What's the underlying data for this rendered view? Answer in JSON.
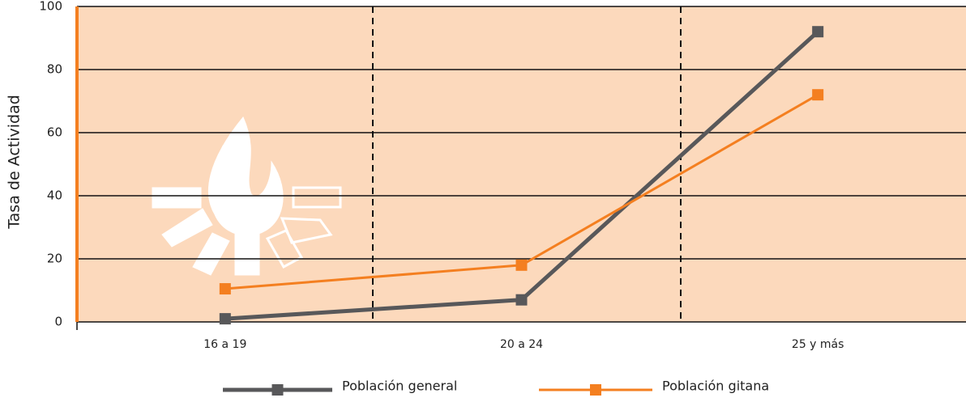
{
  "chart_data": {
    "type": "line",
    "y_label": "Tasa de Actividad",
    "categories": [
      "16 a 19",
      "20 a 24",
      "25 y más"
    ],
    "series": [
      {
        "name": "Población general",
        "color": "#58585a",
        "values": [
          1,
          7,
          92
        ]
      },
      {
        "name": "Población gitana",
        "color": "#f47f20",
        "values": [
          10.5,
          18,
          72
        ]
      }
    ],
    "ylim": [
      0,
      100
    ],
    "yticks": [
      0,
      20,
      40,
      60,
      80,
      100
    ],
    "grid": true,
    "legend": "bottom"
  }
}
